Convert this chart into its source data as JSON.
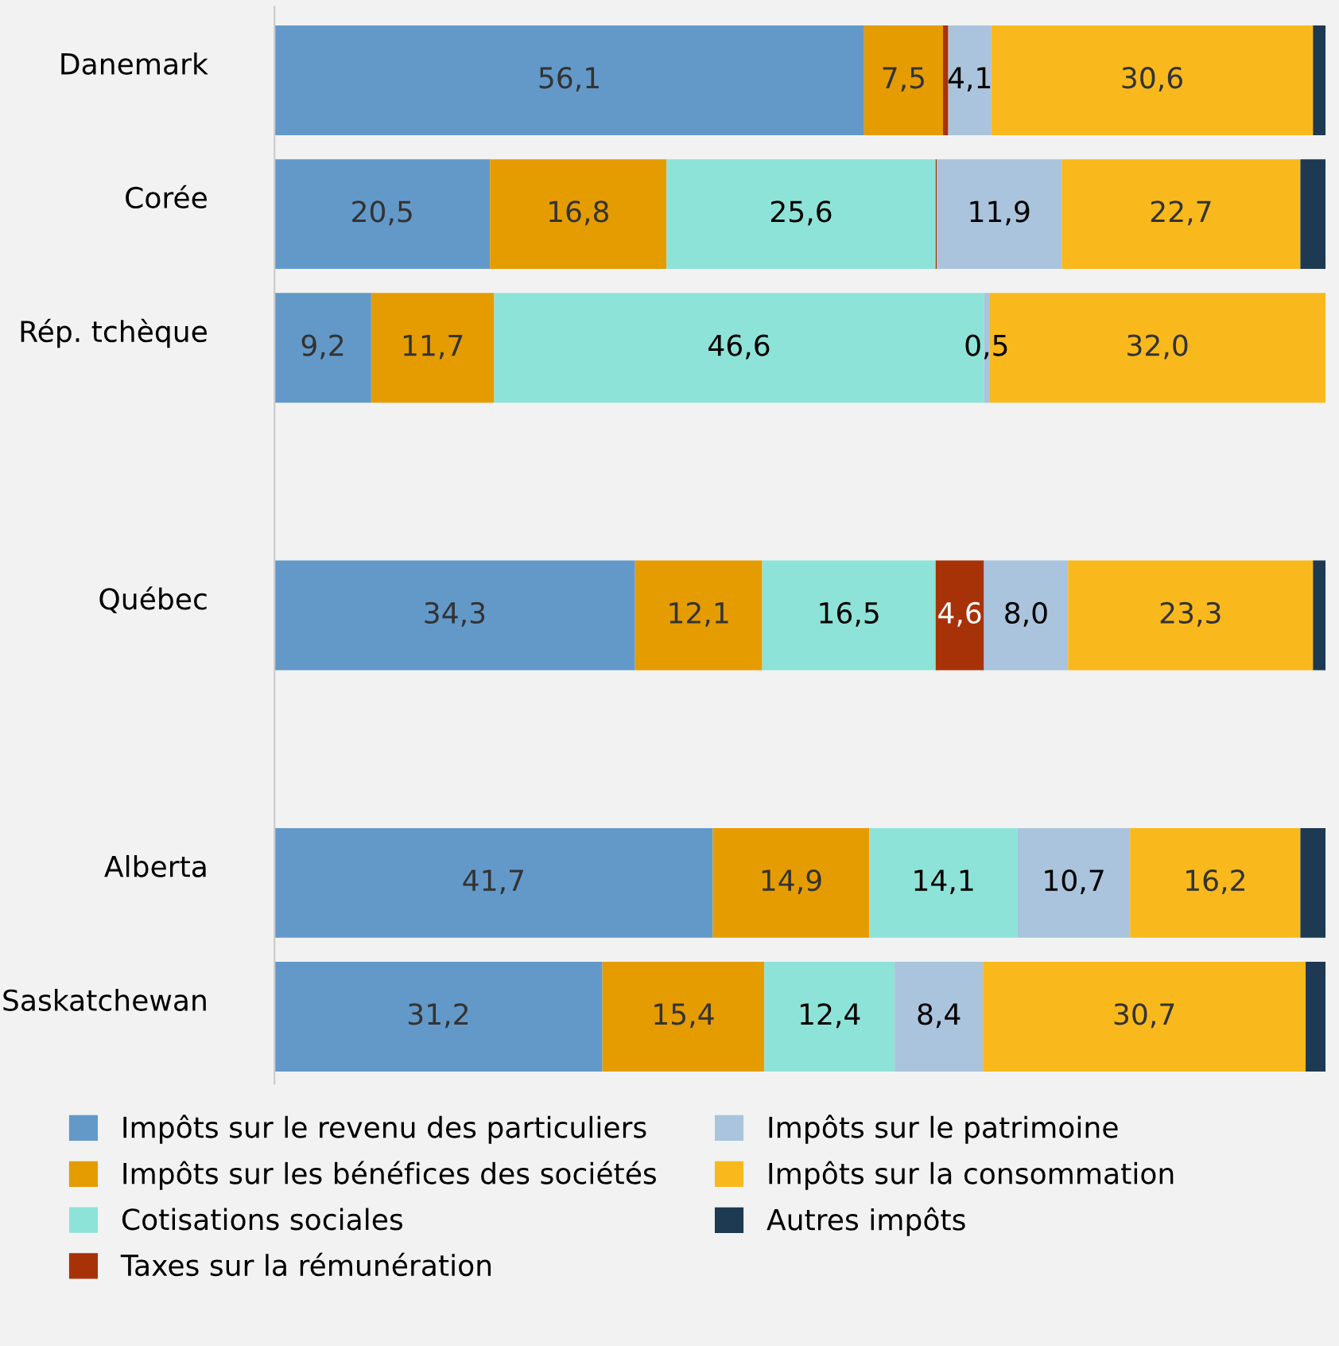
{
  "chart_data": {
    "type": "bar",
    "orientation": "horizontal",
    "stacked": true,
    "categories": [
      "Danemark",
      "Corée",
      "Rép. tchèque",
      null,
      "Québec",
      null,
      "Alberta",
      "Saskatchewan"
    ],
    "series": [
      {
        "name": "Impôts sur le revenu des particuliers",
        "color": "#6399c9",
        "values": [
          56.1,
          20.5,
          9.2,
          null,
          34.3,
          null,
          41.7,
          31.2
        ],
        "value_labels": [
          "56,1",
          "20,5",
          "9,2",
          null,
          "34,3",
          null,
          "41,7",
          "31,2"
        ]
      },
      {
        "name": "Impôts sur les bénéfices des sociétés",
        "color": "#e59c00",
        "values": [
          7.5,
          16.8,
          11.7,
          null,
          12.1,
          null,
          14.9,
          15.4
        ],
        "value_labels": [
          "7,5",
          "16,8",
          "11,7",
          null,
          "12,1",
          null,
          "14,9",
          "15,4"
        ]
      },
      {
        "name": "Cotisations sociales",
        "color": "#8ee3d8",
        "values": [
          0,
          25.6,
          46.6,
          null,
          16.5,
          null,
          14.1,
          12.4
        ],
        "value_labels": [
          null,
          "25,6",
          "46,6",
          null,
          "16,5",
          null,
          "14,1",
          "12,4"
        ]
      },
      {
        "name": "Taxes sur la rémunération",
        "color": "#a83208",
        "values": [
          0.5,
          0.1,
          0,
          null,
          4.6,
          null,
          0,
          0
        ],
        "value_labels": [
          null,
          null,
          null,
          null,
          "4,6",
          null,
          null,
          null
        ]
      },
      {
        "name": "Impôts sur le patrimoine",
        "color": "#a9c4dc",
        "values": [
          4.1,
          11.9,
          0.5,
          null,
          8.0,
          null,
          10.7,
          8.4
        ],
        "value_labels": [
          "4,1",
          "11,9",
          "0,5",
          null,
          "8,0",
          null,
          "10,7",
          "8,4"
        ]
      },
      {
        "name": "Impôts sur la consommation",
        "color": "#f9b91d",
        "values": [
          30.6,
          22.7,
          32.0,
          null,
          23.3,
          null,
          16.2,
          30.7
        ],
        "value_labels": [
          "30,6",
          "22,7",
          "32,0",
          null,
          "23,3",
          null,
          "16,2",
          "30,7"
        ]
      },
      {
        "name": "Autres impôts",
        "color": "#1e3a52",
        "values": [
          1.2,
          2.4,
          0,
          null,
          1.2,
          null,
          2.4,
          1.9
        ],
        "value_labels": [
          null,
          null,
          null,
          null,
          null,
          null,
          null,
          null
        ]
      }
    ],
    "xlim": [
      0,
      100
    ],
    "tick_labels": "y",
    "grid": false,
    "legend": "bottom"
  }
}
